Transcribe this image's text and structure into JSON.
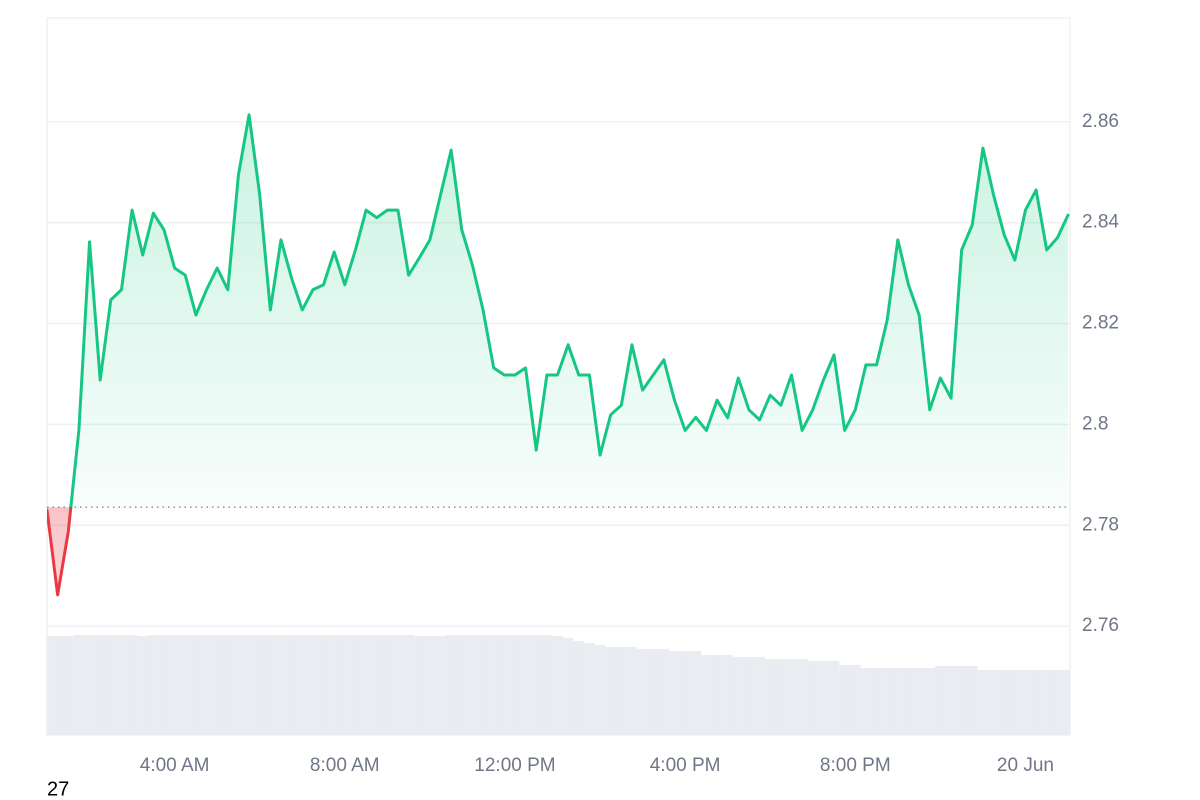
{
  "chart_data": {
    "type": "line",
    "categories": [
      null,
      null,
      null,
      null,
      null,
      null,
      null,
      null,
      null,
      null,
      null,
      null,
      "4:00 AM",
      null,
      null,
      null,
      null,
      null,
      null,
      null,
      null,
      null,
      null,
      null,
      null,
      null,
      null,
      null,
      "8:00 AM",
      null,
      null,
      null,
      null,
      null,
      null,
      null,
      null,
      null,
      null,
      null,
      null,
      null,
      null,
      null,
      "12:00 PM",
      null,
      null,
      null,
      null,
      null,
      null,
      null,
      null,
      null,
      null,
      null,
      null,
      null,
      null,
      null,
      "4:00 PM",
      null,
      null,
      null,
      null,
      null,
      null,
      null,
      null,
      null,
      null,
      null,
      null,
      null,
      null,
      null,
      "8:00 PM",
      null,
      null,
      null,
      null,
      null,
      null,
      null,
      null,
      null,
      null,
      null,
      null,
      null,
      null,
      null,
      "20 Jun",
      null,
      null,
      null,
      null
    ],
    "values": [
      2.783,
      2.7662,
      2.7787,
      2.7989,
      2.8362,
      2.8088,
      2.8247,
      2.8267,
      2.8425,
      2.8336,
      2.8419,
      2.8386,
      2.831,
      2.8296,
      2.8217,
      2.8267,
      2.831,
      2.8267,
      2.8495,
      2.8614,
      2.8455,
      2.8227,
      2.8366,
      2.829,
      2.8227,
      2.8267,
      2.8277,
      2.8342,
      2.8277,
      2.8346,
      2.8425,
      2.841,
      2.8425,
      2.8425,
      2.8296,
      2.833,
      2.8366,
      2.8455,
      2.8544,
      2.8386,
      2.8316,
      2.8227,
      2.8112,
      2.8098,
      2.8098,
      2.8112,
      2.7949,
      2.8098,
      2.8098,
      2.8158,
      2.8098,
      2.8098,
      2.7939,
      2.8019,
      2.8038,
      2.8158,
      2.8068,
      2.8098,
      2.8128,
      2.8048,
      2.7988,
      2.8014,
      2.7988,
      2.8048,
      2.8013,
      2.8092,
      2.8029,
      2.8009,
      2.8058,
      2.8038,
      2.8098,
      2.7988,
      2.8029,
      2.8088,
      2.8138,
      2.7988,
      2.8029,
      2.8118,
      2.8118,
      2.8207,
      2.8366,
      2.8277,
      2.8217,
      2.8029,
      2.8092,
      2.8052,
      2.8346,
      2.8396,
      2.8548,
      2.8455,
      2.8376,
      2.8326,
      2.8425,
      2.8465,
      2.8346,
      2.837,
      2.8415
    ],
    "volumes": [
      99,
      99,
      99,
      100,
      100,
      100,
      100,
      100,
      100,
      99,
      100,
      100,
      100,
      100,
      100,
      100,
      100,
      100,
      100,
      100,
      100,
      100,
      100,
      100,
      100,
      100,
      100,
      100,
      100,
      100,
      100,
      100,
      100,
      100,
      100,
      99,
      99,
      99,
      100,
      100,
      100,
      100,
      100,
      100,
      100,
      100,
      100,
      100,
      99,
      97,
      94,
      92,
      90,
      88,
      88,
      88,
      86,
      86,
      86,
      84,
      84,
      84,
      80,
      80,
      80,
      78,
      78,
      78,
      76,
      76,
      76,
      76,
      74,
      74,
      74,
      70,
      70,
      67,
      67,
      67,
      67,
      67,
      67,
      67,
      69,
      69,
      69,
      69,
      65,
      65,
      65,
      65,
      65,
      65,
      65,
      65,
      65
    ],
    "baseline": 2.7836,
    "up_color": "#16c784",
    "down_color": "#ea3943",
    "volume_color": "#e9ecf1",
    "ylim": [
      2.7384,
      2.8806
    ],
    "yticks": [
      2.76,
      2.78,
      2.8,
      2.82,
      2.84,
      2.86
    ],
    "grid": true,
    "corner_label": "27"
  }
}
